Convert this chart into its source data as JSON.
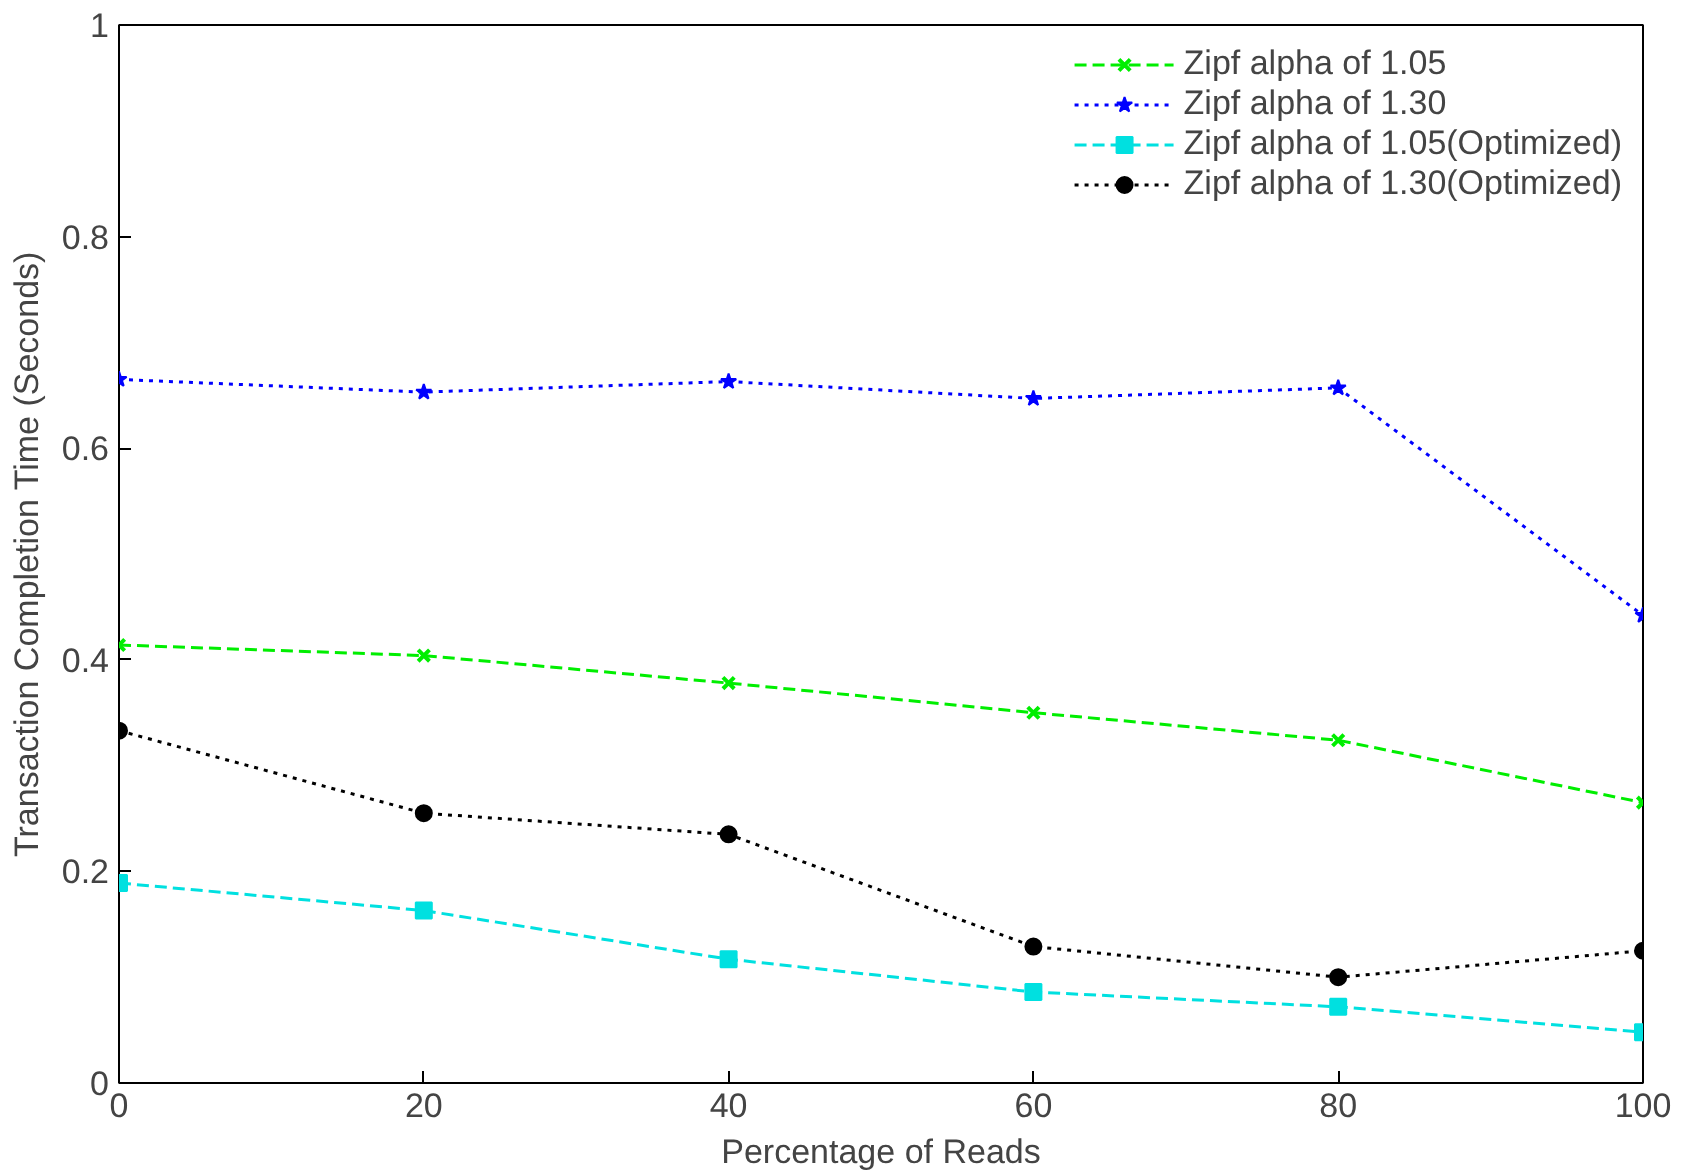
{
  "chart_data": {
    "type": "line",
    "xlabel": "Percentage of Reads",
    "ylabel": "Transaction Completion Time (Seconds)",
    "x": [
      0,
      20,
      40,
      60,
      80,
      100
    ],
    "xlim": [
      0,
      100
    ],
    "xticks": [
      0,
      20,
      40,
      60,
      80,
      100
    ],
    "ylim": [
      0,
      1
    ],
    "yticks": [
      0,
      0.2,
      0.4,
      0.6,
      0.8,
      1
    ],
    "grid": false,
    "legend": "top right",
    "series": [
      {
        "name": "Zipf alpha of 1.05",
        "color": "#00ee00",
        "marker": "cross",
        "line_style": "dashed",
        "values": [
          0.414,
          0.404,
          0.378,
          0.35,
          0.324,
          0.265
        ]
      },
      {
        "name": "Zipf alpha of 1.30",
        "color": "#0000ff",
        "marker": "star",
        "line_style": "dotted",
        "values": [
          0.665,
          0.653,
          0.663,
          0.647,
          0.657,
          0.442
        ]
      },
      {
        "name": "Zipf alpha of 1.05(Optimized)",
        "color": "#00e0e0",
        "marker": "square",
        "line_style": "dashed",
        "values": [
          0.189,
          0.163,
          0.117,
          0.086,
          0.072,
          0.048
        ]
      },
      {
        "name": "Zipf alpha of 1.30(Optimized)",
        "color": "#000000",
        "marker": "circle",
        "line_style": "dotted",
        "values": [
          0.333,
          0.255,
          0.235,
          0.129,
          0.1,
          0.125
        ]
      }
    ]
  }
}
